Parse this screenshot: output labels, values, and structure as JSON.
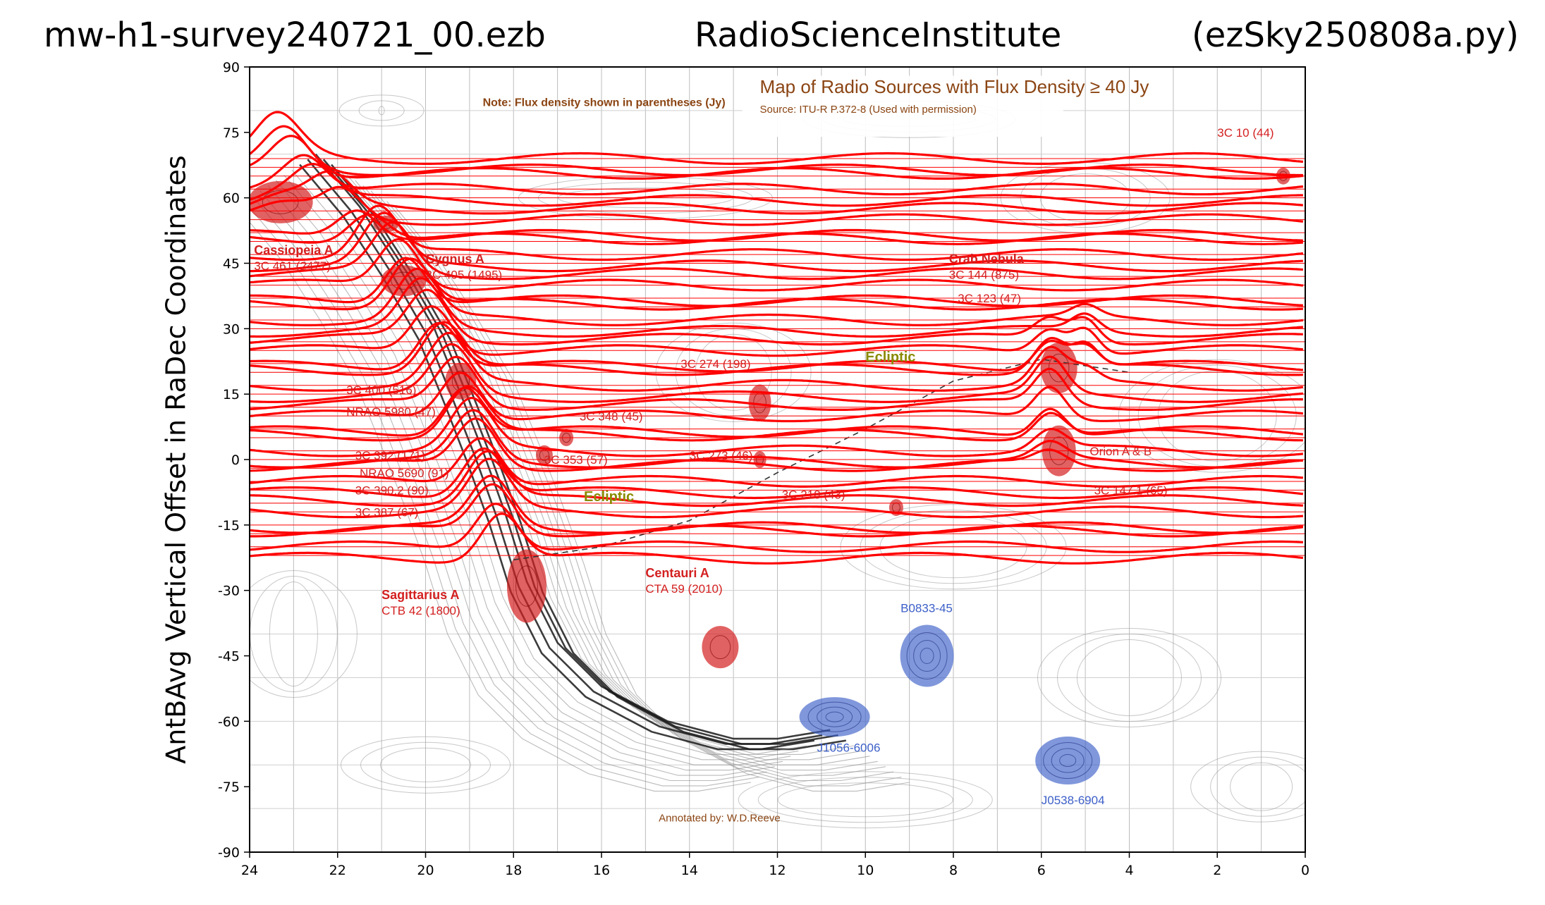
{
  "header": {
    "left": "mw-h1-survey240721_00.ezb",
    "center": "RadioScienceInstitute",
    "right": "(ezSky250808a.py)"
  },
  "colors": {
    "trace": "#ff0000",
    "source_red": "#d42020",
    "source_blue": "#3c5fc8",
    "note_brown": "#8b4513",
    "ecliptic": "#8a8a00",
    "contour": "#8c8c8c",
    "dark_band": "#1a1a1a"
  },
  "background_map": {
    "title": "Map of Radio Sources with Flux Density ≥ 40 Jy",
    "source": "Source: ITU-R P.372-8 (Used with permission)",
    "note": "Note: Flux density shown in parentheses (Jy)",
    "credit": "Annotated by: W.D.Reeve",
    "ecliptic_label": "Ecliptic",
    "labels": [
      {
        "name": "Cassiopeia A",
        "sub": "3C 461 (2477)",
        "ra": 23.9,
        "dec": 47,
        "color": "red"
      },
      {
        "name": "Cygnus A",
        "sub": "3C 405 (1495)",
        "ra": 20.0,
        "dec": 45,
        "color": "red"
      },
      {
        "name": "Crab Nebula",
        "sub": "3C 144 (875)",
        "ra": 8.1,
        "dec": 45,
        "color": "red"
      },
      {
        "name": "Sagittarius A",
        "sub": "CTB 42 (1800)",
        "ra": 21.0,
        "dec": -32,
        "color": "red"
      },
      {
        "name": "Centauri A",
        "sub": "CTA 59 (2010)",
        "ra": 15.0,
        "dec": -27,
        "color": "red"
      },
      {
        "name": "3C 10 (44)",
        "sub": "",
        "ra": 2.0,
        "dec": 74,
        "color": "red"
      },
      {
        "name": "Orion A & B",
        "sub": "",
        "ra": 4.9,
        "dec": 1,
        "color": "red"
      },
      {
        "name": "B0833-45",
        "sub": "",
        "ra": 9.2,
        "dec": -35,
        "color": "blue"
      },
      {
        "name": "J1056-6006",
        "sub": "",
        "ra": 11.1,
        "dec": -67,
        "color": "blue"
      },
      {
        "name": "J0538-6904",
        "sub": "",
        "ra": 6.0,
        "dec": -79,
        "color": "blue"
      },
      {
        "name": "3C 218 (43)",
        "sub": "",
        "ra": 11.9,
        "dec": -9,
        "color": "red"
      },
      {
        "name": "3C 353 (57)",
        "sub": "",
        "ra": 17.3,
        "dec": -1,
        "color": "red"
      },
      {
        "name": "3C 348 (45)",
        "sub": "",
        "ra": 16.5,
        "dec": 9,
        "color": "red"
      },
      {
        "name": "3C 274 (198)",
        "sub": "",
        "ra": 14.2,
        "dec": 21,
        "color": "red"
      },
      {
        "name": "3C 273 (46)",
        "sub": "",
        "ra": 14.0,
        "dec": 0,
        "color": "red"
      },
      {
        "name": "3C 400 (516)",
        "sub": "",
        "ra": 21.8,
        "dec": 15,
        "color": "red"
      },
      {
        "name": "NRAO 5980 (47)",
        "sub": "",
        "ra": 21.8,
        "dec": 10,
        "color": "red"
      },
      {
        "name": "3C 392 (171)",
        "sub": "",
        "ra": 21.6,
        "dec": 0,
        "color": "red"
      },
      {
        "name": "NRAO 5690 (91)",
        "sub": "",
        "ra": 21.5,
        "dec": -4,
        "color": "red"
      },
      {
        "name": "3C 390.2 (90)",
        "sub": "",
        "ra": 21.6,
        "dec": -8,
        "color": "red"
      },
      {
        "name": "3C 387 (67)",
        "sub": "",
        "ra": 21.6,
        "dec": -13,
        "color": "red"
      },
      {
        "name": "3C 123 (47)",
        "sub": "",
        "ra": 7.9,
        "dec": 36,
        "color": "red"
      },
      {
        "name": "3C 147.1 (65)",
        "sub": "",
        "ra": 4.8,
        "dec": -8,
        "color": "red"
      }
    ]
  },
  "chart_data": {
    "type": "line",
    "title": "",
    "xlabel": "",
    "ylabel": "AntBAvg Vertical Offset in RaDec Coordinates",
    "xlim": [
      24,
      0
    ],
    "ylim": [
      -90,
      90
    ],
    "xticks": [
      24,
      22,
      20,
      18,
      16,
      14,
      12,
      10,
      8,
      6,
      4,
      2,
      0
    ],
    "xtick_labels": [
      "24",
      "22",
      "20",
      "18",
      "16",
      "14",
      "12",
      "10",
      "8",
      "6",
      "4",
      "2",
      "0"
    ],
    "yticks": [
      90,
      75,
      60,
      45,
      30,
      15,
      0,
      -15,
      -30,
      -45,
      -60,
      -75,
      -90
    ],
    "ytick_labels": [
      "90",
      "75",
      "60",
      "45",
      "30",
      "15",
      "0",
      "-15",
      "-30",
      "-45",
      "-60",
      "-75",
      "-90"
    ],
    "grid": false,
    "declinations": [
      -22,
      -20,
      -17,
      -15,
      -12,
      -10,
      -7,
      -5,
      -2,
      0,
      2,
      5,
      7,
      10,
      12,
      15,
      17,
      20,
      22,
      25,
      27,
      30,
      32,
      35,
      37,
      40,
      42,
      45,
      47,
      50,
      52,
      55,
      57,
      60,
      62,
      65,
      67,
      69
    ],
    "series_note": "Each series is a red AntBAvg trace drawn at its declination plus a vertical offset proportional to the averaged antenna power; peaks occur where the drift crosses the galactic plane (RA ~18-21 h), Taurus/Orion (RA ~5-6 h) and Cygnus region."
  }
}
